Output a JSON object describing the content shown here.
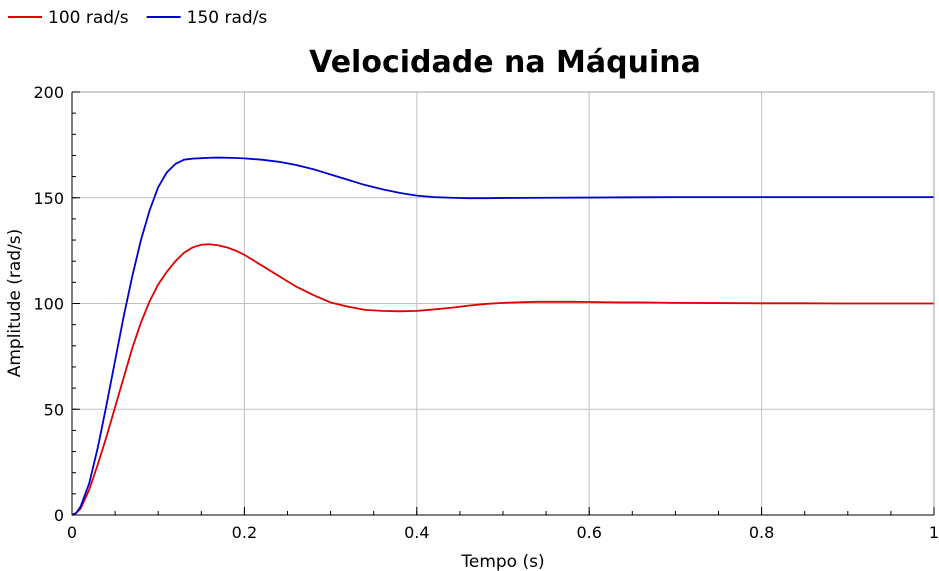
{
  "chart_data": {
    "type": "line",
    "title": "Velocidade na Máquina",
    "xlabel": "Tempo (s)",
    "ylabel": "Amplitude (rad/s)",
    "xlim": [
      0,
      1
    ],
    "ylim": [
      0,
      200
    ],
    "xticks": [
      0,
      0.2,
      0.4,
      0.6,
      0.8,
      1
    ],
    "xtick_labels": [
      "0",
      "0.2",
      "0.4",
      "0.6",
      "0.8",
      "1"
    ],
    "yticks": [
      0,
      50,
      100,
      150,
      200
    ],
    "ytick_labels": [
      "0",
      "50",
      "100",
      "150",
      "200"
    ],
    "grid": true,
    "legend_position": "top-left",
    "series": [
      {
        "name": "100 rad/s",
        "color": "#e00000",
        "x": [
          0,
          0.005,
          0.01,
          0.02,
          0.03,
          0.04,
          0.05,
          0.06,
          0.07,
          0.08,
          0.09,
          0.1,
          0.11,
          0.12,
          0.13,
          0.14,
          0.15,
          0.16,
          0.17,
          0.18,
          0.19,
          0.2,
          0.22,
          0.24,
          0.26,
          0.28,
          0.3,
          0.32,
          0.34,
          0.36,
          0.38,
          0.4,
          0.42,
          0.44,
          0.46,
          0.48,
          0.5,
          0.52,
          0.54,
          0.56,
          0.58,
          0.6,
          0.62,
          0.64,
          0.66,
          0.68,
          0.7,
          0.75,
          0.8,
          0.85,
          0.9,
          0.95,
          1.0
        ],
        "y": [
          0,
          1,
          3,
          12,
          24,
          37,
          51,
          65,
          79,
          91,
          101,
          109,
          115,
          120,
          124,
          126.5,
          127.8,
          128,
          127.5,
          126.5,
          125,
          123,
          118,
          113,
          108,
          104,
          100.5,
          98.5,
          97,
          96.5,
          96.3,
          96.5,
          97.2,
          98,
          99,
          99.8,
          100.3,
          100.6,
          100.8,
          100.8,
          100.8,
          100.7,
          100.6,
          100.5,
          100.5,
          100.4,
          100.3,
          100.2,
          100.1,
          100.1,
          100,
          100,
          100
        ]
      },
      {
        "name": "150 rad/s",
        "color": "#0000d0",
        "x": [
          0,
          0.005,
          0.01,
          0.02,
          0.03,
          0.04,
          0.05,
          0.06,
          0.07,
          0.08,
          0.09,
          0.1,
          0.11,
          0.12,
          0.13,
          0.14,
          0.15,
          0.16,
          0.17,
          0.18,
          0.19,
          0.2,
          0.22,
          0.24,
          0.26,
          0.28,
          0.3,
          0.32,
          0.34,
          0.36,
          0.38,
          0.4,
          0.42,
          0.44,
          0.46,
          0.48,
          0.5,
          0.55,
          0.6,
          0.65,
          0.7,
          0.75,
          0.8,
          0.85,
          0.9,
          0.95,
          1.0
        ],
        "y": [
          0,
          1,
          4,
          15,
          32,
          52,
          73,
          94,
          113,
          130,
          144,
          155,
          162,
          166,
          168,
          168.5,
          168.7,
          168.9,
          169,
          168.9,
          168.8,
          168.6,
          168,
          167,
          165.5,
          163.5,
          161,
          158.5,
          156,
          154,
          152.3,
          151,
          150.3,
          150,
          149.8,
          149.8,
          149.9,
          150,
          150.1,
          150.2,
          150.3,
          150.3,
          150.3,
          150.3,
          150.3,
          150.3,
          150.3
        ]
      }
    ]
  }
}
